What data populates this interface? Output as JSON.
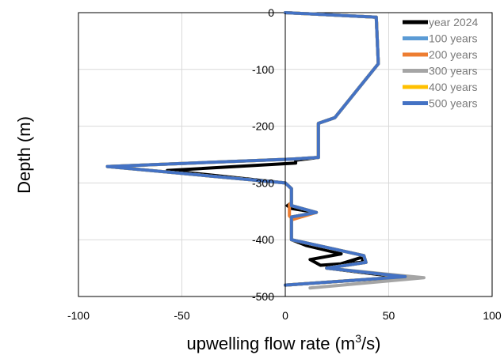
{
  "chart_data": {
    "type": "line",
    "title": "",
    "xlabel_main": "upwelling flow rate (m",
    "xlabel_sup": "3",
    "xlabel_tail": "/s)",
    "ylabel": "Depth (m)",
    "xlim": [
      -100,
      100
    ],
    "ylim": [
      -500,
      0
    ],
    "x_ticks": [
      -100,
      -50,
      0,
      50,
      100
    ],
    "y_ticks": [
      0,
      -100,
      -200,
      -300,
      -400,
      -500
    ],
    "grid": true,
    "legend_position": "top-right",
    "series": [
      {
        "name": "year 2024",
        "color": "#000000",
        "points": [
          [
            0,
            0
          ],
          [
            44,
            -8
          ],
          [
            45,
            -90
          ],
          [
            24,
            -185
          ],
          [
            16,
            -195
          ],
          [
            16,
            -255
          ],
          [
            5,
            -260
          ],
          [
            5,
            -265
          ],
          [
            -57,
            -278
          ],
          [
            0,
            -300
          ],
          [
            3,
            -310
          ],
          [
            3,
            -335
          ],
          [
            1,
            -340
          ],
          [
            3,
            -345
          ],
          [
            15,
            -352
          ],
          [
            3,
            -360
          ],
          [
            3,
            -400
          ],
          [
            10,
            -410
          ],
          [
            27,
            -425
          ],
          [
            12,
            -435
          ],
          [
            17,
            -445
          ],
          [
            37,
            -440
          ],
          [
            38,
            -430
          ],
          [
            20,
            -450
          ],
          [
            56,
            -466
          ],
          [
            0,
            -480
          ]
        ]
      },
      {
        "name": "100 years",
        "color": "#5b9bd5",
        "points": [
          [
            0,
            0
          ],
          [
            44,
            -8
          ],
          [
            45,
            -90
          ],
          [
            24,
            -185
          ],
          [
            16,
            -195
          ],
          [
            16,
            -255
          ],
          [
            3,
            -258
          ],
          [
            -86,
            -271
          ],
          [
            0,
            -300
          ],
          [
            3,
            -310
          ],
          [
            3,
            -340
          ],
          [
            15,
            -352
          ],
          [
            3,
            -360
          ],
          [
            3,
            -400
          ],
          [
            38,
            -428
          ],
          [
            39,
            -440
          ],
          [
            20,
            -450
          ],
          [
            58,
            -465
          ],
          [
            0,
            -480
          ]
        ]
      },
      {
        "name": "200 years",
        "color": "#ed7d31",
        "points": [
          [
            0,
            0
          ],
          [
            44,
            -8
          ],
          [
            45,
            -90
          ],
          [
            24,
            -185
          ],
          [
            16,
            -195
          ],
          [
            16,
            -255
          ],
          [
            3,
            -258
          ],
          [
            -86,
            -271
          ],
          [
            0,
            -300
          ],
          [
            3,
            -310
          ],
          [
            3,
            -335
          ],
          [
            2,
            -338
          ],
          [
            2,
            -358
          ],
          [
            3,
            -362
          ],
          [
            15,
            -352
          ],
          [
            3,
            -365
          ],
          [
            3,
            -400
          ],
          [
            38,
            -428
          ],
          [
            39,
            -440
          ],
          [
            20,
            -450
          ],
          [
            58,
            -465
          ],
          [
            0,
            -480
          ]
        ]
      },
      {
        "name": "300 years",
        "color": "#a5a5a5",
        "points": [
          [
            0,
            0
          ],
          [
            44,
            -8
          ],
          [
            45,
            -90
          ],
          [
            24,
            -185
          ],
          [
            16,
            -195
          ],
          [
            16,
            -255
          ],
          [
            3,
            -258
          ],
          [
            -86,
            -271
          ],
          [
            0,
            -300
          ],
          [
            3,
            -310
          ],
          [
            3,
            -340
          ],
          [
            15,
            -352
          ],
          [
            3,
            -360
          ],
          [
            3,
            -400
          ],
          [
            38,
            -428
          ],
          [
            39,
            -440
          ],
          [
            20,
            -450
          ],
          [
            67,
            -467
          ],
          [
            12,
            -485
          ]
        ]
      },
      {
        "name": "400 years",
        "color": "#ffc000",
        "points": [
          [
            0,
            0
          ],
          [
            44,
            -8
          ],
          [
            45,
            -90
          ],
          [
            24,
            -185
          ],
          [
            16,
            -195
          ],
          [
            16,
            -255
          ],
          [
            3,
            -258
          ],
          [
            -86,
            -271
          ],
          [
            0,
            -300
          ],
          [
            3,
            -310
          ],
          [
            3,
            -340
          ],
          [
            15,
            -352
          ],
          [
            3,
            -360
          ],
          [
            3,
            -400
          ],
          [
            38,
            -428
          ],
          [
            39,
            -440
          ],
          [
            20,
            -450
          ],
          [
            58,
            -465
          ],
          [
            0,
            -480
          ]
        ]
      },
      {
        "name": "500 years",
        "color": "#4472c4",
        "points": [
          [
            0,
            0
          ],
          [
            44,
            -8
          ],
          [
            45,
            -90
          ],
          [
            24,
            -185
          ],
          [
            16,
            -195
          ],
          [
            16,
            -255
          ],
          [
            3,
            -258
          ],
          [
            -86,
            -271
          ],
          [
            0,
            -300
          ],
          [
            3,
            -310
          ],
          [
            3,
            -340
          ],
          [
            15,
            -352
          ],
          [
            3,
            -360
          ],
          [
            3,
            -400
          ],
          [
            38,
            -428
          ],
          [
            39,
            -440
          ],
          [
            20,
            -450
          ],
          [
            58,
            -465
          ],
          [
            0,
            -480
          ]
        ]
      }
    ]
  }
}
